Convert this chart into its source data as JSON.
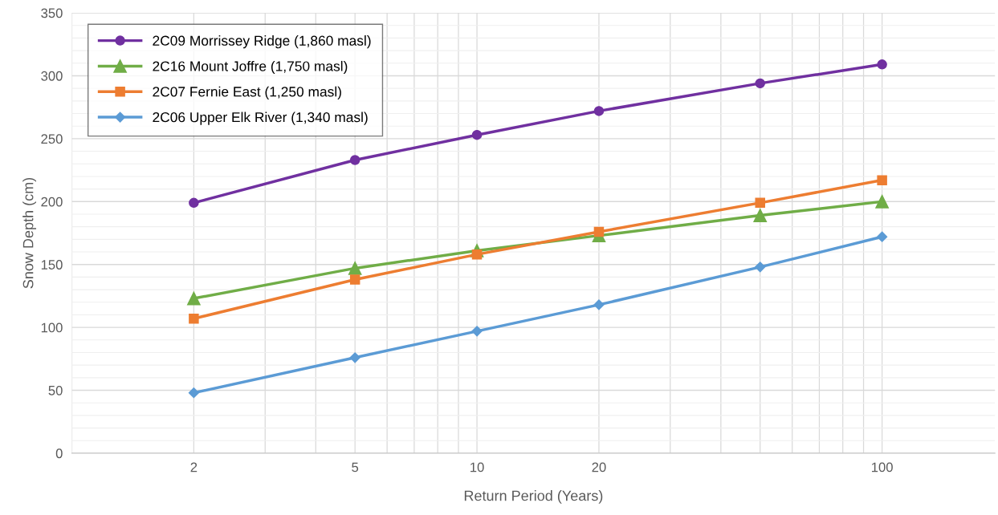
{
  "chart_data": {
    "type": "line",
    "xlabel": "Return Period (Years)",
    "ylabel": "Snow Depth (cm)",
    "x": [
      2,
      5,
      10,
      20,
      50,
      100
    ],
    "series": [
      {
        "name": "2C09 Morrissey Ridge (1,860 masl)",
        "color": "#7030a0",
        "marker": "circle",
        "values": [
          199,
          233,
          253,
          272,
          294,
          309
        ]
      },
      {
        "name": "2C16 Mount Joffre (1,750 masl)",
        "color": "#70ad47",
        "marker": "triangle",
        "values": [
          123,
          147,
          161,
          173,
          189,
          200
        ]
      },
      {
        "name": "2C07 Fernie East (1,250 masl)",
        "color": "#ed7d31",
        "marker": "square",
        "values": [
          107,
          138,
          158,
          176,
          199,
          217
        ]
      },
      {
        "name": "2C06 Upper Elk River (1,340 masl)",
        "color": "#5b9bd5",
        "marker": "diamond",
        "values": [
          48,
          76,
          97,
          118,
          148,
          172
        ]
      }
    ],
    "log": "x",
    "xlim": [
      1,
      190
    ],
    "xticks": [
      2,
      5,
      10,
      20,
      100
    ],
    "ylim": [
      0,
      350
    ],
    "yticks": [
      0,
      50,
      100,
      150,
      200,
      250,
      300,
      350
    ],
    "grid": true,
    "legend": "top left",
    "line_style": "solid"
  }
}
